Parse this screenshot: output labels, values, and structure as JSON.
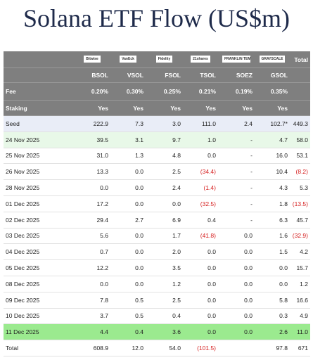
{
  "title": "Solana ETF Flow (US$m)",
  "table": {
    "logos": [
      "Bitwise",
      "VanEck",
      "Fidelity",
      "21shares",
      "FRANKLIN TEMPLETON",
      "GRAYSCALE"
    ],
    "total_header": "Total",
    "columns": [
      "BSOL",
      "VSOL",
      "FSOL",
      "TSOL",
      "SOEZ",
      "GSOL"
    ],
    "fee": {
      "label": "Fee",
      "values": [
        "0.20%",
        "0.30%",
        "0.25%",
        "0.21%",
        "0.19%",
        "0.35%"
      ]
    },
    "staking": {
      "label": "Staking",
      "values": [
        "Yes",
        "Yes",
        "Yes",
        "Yes",
        "Yes",
        "Yes"
      ]
    },
    "rows": [
      {
        "label": "Seed",
        "cells": [
          "222.9",
          "7.3",
          "3.0",
          "111.0",
          "2.4",
          "102.7*",
          "449.3"
        ]
      },
      {
        "label": "24 Nov 2025",
        "cells": [
          "39.5",
          "3.1",
          "9.7",
          "1.0",
          "-",
          "4.7",
          "58.0"
        ]
      },
      {
        "label": "25 Nov 2025",
        "cells": [
          "31.0",
          "1.3",
          "4.8",
          "0.0",
          "-",
          "16.0",
          "53.1"
        ]
      },
      {
        "label": "26 Nov 2025",
        "cells": [
          "13.3",
          "0.0",
          "2.5",
          "(34.4)",
          "-",
          "10.4",
          "(8.2)"
        ]
      },
      {
        "label": "28 Nov 2025",
        "cells": [
          "0.0",
          "0.0",
          "2.4",
          "(1.4)",
          "-",
          "4.3",
          "5.3"
        ]
      },
      {
        "label": "01 Dec 2025",
        "cells": [
          "17.2",
          "0.0",
          "0.0",
          "(32.5)",
          "-",
          "1.8",
          "(13.5)"
        ]
      },
      {
        "label": "02 Dec 2025",
        "cells": [
          "29.4",
          "2.7",
          "6.9",
          "0.4",
          "-",
          "6.3",
          "45.7"
        ]
      },
      {
        "label": "03 Dec 2025",
        "cells": [
          "5.6",
          "0.0",
          "1.7",
          "(41.8)",
          "0.0",
          "1.6",
          "(32.9)"
        ]
      },
      {
        "label": "04 Dec 2025",
        "cells": [
          "0.7",
          "0.0",
          "2.0",
          "0.0",
          "0.0",
          "1.5",
          "4.2"
        ]
      },
      {
        "label": "05 Dec 2025",
        "cells": [
          "12.2",
          "0.0",
          "3.5",
          "0.0",
          "0.0",
          "0.0",
          "15.7"
        ]
      },
      {
        "label": "08 Dec 2025",
        "cells": [
          "0.0",
          "0.0",
          "1.2",
          "0.0",
          "0.0",
          "0.0",
          "1.2"
        ]
      },
      {
        "label": "09 Dec 2025",
        "cells": [
          "7.8",
          "0.5",
          "2.5",
          "0.0",
          "0.0",
          "5.8",
          "16.6"
        ]
      },
      {
        "label": "10 Dec 2025",
        "cells": [
          "3.7",
          "0.5",
          "0.4",
          "0.0",
          "0.0",
          "0.3",
          "4.9"
        ]
      },
      {
        "label": "11 Dec 2025",
        "cells": [
          "4.4",
          "0.4",
          "3.6",
          "0.0",
          "0.0",
          "2.6",
          "11.0"
        ]
      },
      {
        "label": "Total",
        "cells": [
          "608.9",
          "12.0",
          "54.0",
          "(101.5)",
          null,
          "97.8",
          "671"
        ]
      }
    ]
  }
}
